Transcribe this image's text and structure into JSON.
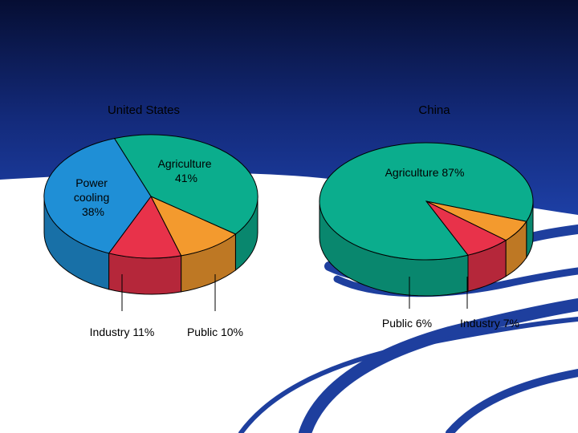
{
  "chart_data": [
    {
      "type": "pie",
      "title": "United States",
      "labels": [
        "Agriculture",
        "Public",
        "Industry",
        "Power cooling"
      ],
      "values": [
        41,
        10,
        11,
        38
      ],
      "unit": "%",
      "colors": [
        "#0bad8d",
        "#f39a2e",
        "#e8324a",
        "#1f8fd6"
      ],
      "label_text": {
        "agriculture": [
          "Agriculture",
          "41%"
        ],
        "public": [
          "Public 10%"
        ],
        "industry": [
          "Industry 11%"
        ],
        "power": [
          "Power",
          "cooling",
          "38%"
        ]
      }
    },
    {
      "type": "pie",
      "title": "China",
      "labels": [
        "Agriculture",
        "Public",
        "Industry"
      ],
      "values": [
        87,
        6,
        7
      ],
      "unit": "%",
      "colors": [
        "#0bad8d",
        "#f39a2e",
        "#e8324a"
      ],
      "label_text": {
        "agriculture": [
          "Agriculture 87%"
        ],
        "public": [
          "Public 6%"
        ],
        "industry": [
          "Industry 7%"
        ]
      }
    }
  ],
  "colors": {
    "background_top": "#0a1446",
    "background_mid": "#1a3a9a",
    "swoosh": "#1e3f9e",
    "outline": "#000000"
  }
}
